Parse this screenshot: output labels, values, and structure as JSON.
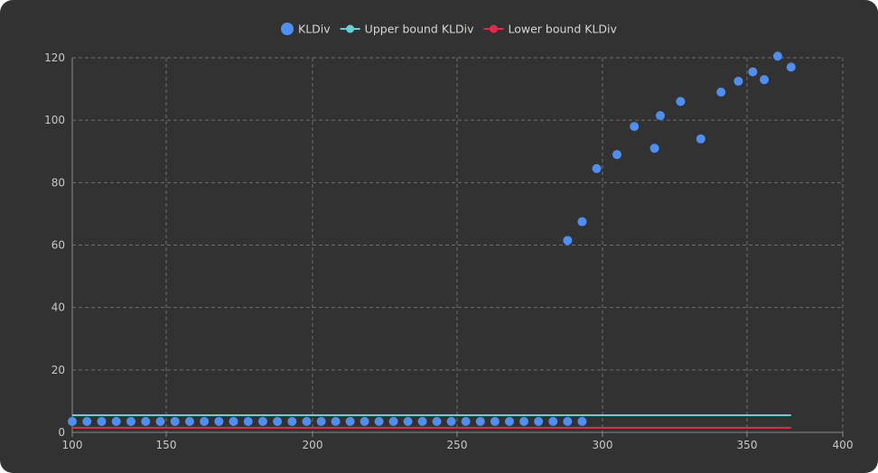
{
  "chart_data": {
    "type": "scatter",
    "legend_position": "top-center",
    "grid": true,
    "xlim": [
      118,
      400
    ],
    "ylim": [
      0,
      120
    ],
    "x_ticks": [
      "100",
      "150",
      "200",
      "250",
      "300",
      "350",
      "400"
    ],
    "y_ticks": [
      "0",
      "20",
      "40",
      "60",
      "80",
      "100",
      "120"
    ],
    "series": [
      {
        "name": "KLDiv",
        "kind": "scatter",
        "color": "#4f8ff2",
        "points": [
          [
            118,
            3.5
          ],
          [
            123,
            3.5
          ],
          [
            128,
            3.5
          ],
          [
            133,
            3.5
          ],
          [
            138,
            3.5
          ],
          [
            143,
            3.5
          ],
          [
            148,
            3.5
          ],
          [
            153,
            3.5
          ],
          [
            158,
            3.5
          ],
          [
            163,
            3.5
          ],
          [
            168,
            3.5
          ],
          [
            173,
            3.5
          ],
          [
            178,
            3.5
          ],
          [
            183,
            3.5
          ],
          [
            188,
            3.5
          ],
          [
            193,
            3.5
          ],
          [
            198,
            3.5
          ],
          [
            203,
            3.5
          ],
          [
            208,
            3.5
          ],
          [
            213,
            3.5
          ],
          [
            218,
            3.5
          ],
          [
            223,
            3.5
          ],
          [
            228,
            3.5
          ],
          [
            233,
            3.5
          ],
          [
            238,
            3.5
          ],
          [
            243,
            3.5
          ],
          [
            248,
            3.5
          ],
          [
            253,
            3.5
          ],
          [
            258,
            3.5
          ],
          [
            263,
            3.5
          ],
          [
            268,
            3.5
          ],
          [
            273,
            3.5
          ],
          [
            278,
            3.5
          ],
          [
            283,
            3.5
          ],
          [
            288,
            3.5
          ],
          [
            293,
            3.5
          ],
          [
            288,
            61.5
          ],
          [
            293,
            67.5
          ],
          [
            298,
            84.5
          ],
          [
            305,
            89
          ],
          [
            311,
            98
          ],
          [
            318,
            91
          ],
          [
            320,
            101.5
          ],
          [
            327,
            106
          ],
          [
            334,
            94
          ],
          [
            341,
            109
          ],
          [
            347,
            112.5
          ],
          [
            353,
            115.5
          ],
          [
            359,
            113
          ],
          [
            366,
            120.5
          ],
          [
            373,
            117
          ]
        ]
      },
      {
        "name": "Upper bound KLDiv",
        "kind": "line",
        "color": "#5fd3d8",
        "points": [
          [
            118,
            5.5
          ],
          [
            373,
            5.5
          ]
        ]
      },
      {
        "name": "Lower bound KLDiv",
        "kind": "line",
        "color": "#e8284a",
        "points": [
          [
            118,
            1.5
          ],
          [
            373,
            1.5
          ]
        ]
      }
    ]
  }
}
